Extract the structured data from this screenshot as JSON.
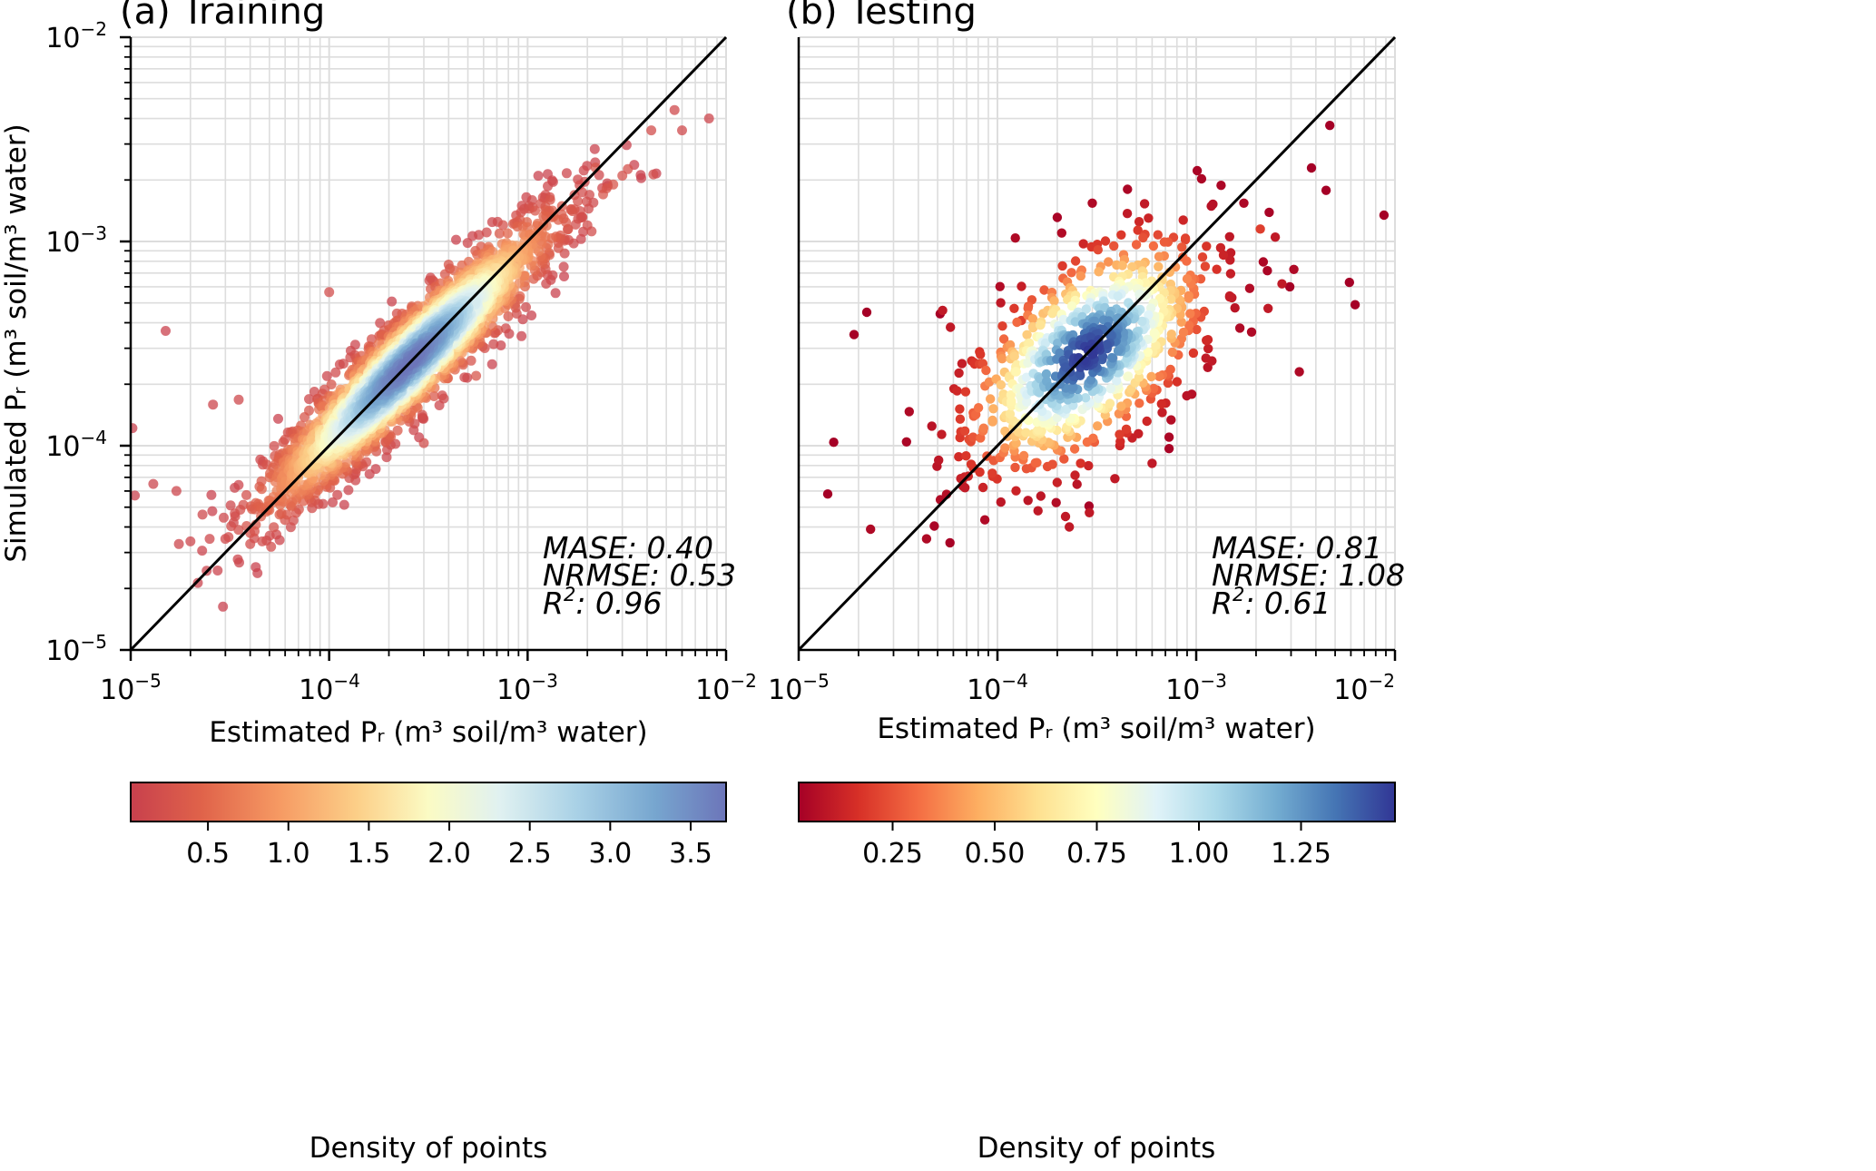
{
  "figure": {
    "colors": {
      "frame": "#000000",
      "grid": "#dddddd",
      "identity_line": "#000000"
    }
  },
  "chart_data": [
    {
      "type": "scatter",
      "panel": "(a)",
      "title": "(a) Training",
      "xlabel": "Estimated Pᵣ (m³ soil/m³ water)",
      "ylabel": "Simulated Pᵣ (m³ soil/m³ water)",
      "xscale": "log",
      "yscale": "log",
      "xlim": [
        1e-05,
        0.01
      ],
      "ylim": [
        1e-05,
        0.01
      ],
      "grid": true,
      "identity_line": true,
      "xticks": [
        {
          "value": 1e-05,
          "base": "10",
          "exp": "−5"
        },
        {
          "value": 0.0001,
          "base": "10",
          "exp": "−4"
        },
        {
          "value": 0.001,
          "base": "10",
          "exp": "−3"
        },
        {
          "value": 0.01,
          "base": "10",
          "exp": "−2"
        }
      ],
      "yticks": [
        {
          "value": 1e-05,
          "base": "10",
          "exp": "−5"
        },
        {
          "value": 0.0001,
          "base": "10",
          "exp": "−4"
        },
        {
          "value": 0.001,
          "base": "10",
          "exp": "−3"
        },
        {
          "value": 0.01,
          "base": "10",
          "exp": "−2"
        }
      ],
      "metrics": {
        "mase_label": "MASE:",
        "mase": "0.40",
        "nrmse_label": "NRMSE:",
        "nrmse": "0.53",
        "r2_label": "R",
        "r2_sup": "2",
        "r2": ": 0.96"
      },
      "colormap": "RdYlBu",
      "point_alpha": 0.75,
      "colorbar": {
        "label": "Density of points",
        "range": [
          0.02,
          3.72
        ],
        "ticks": [
          "0.5",
          "1.0",
          "1.5",
          "2.0",
          "2.5",
          "3.0",
          "3.5"
        ],
        "tick_values": [
          0.5,
          1.0,
          1.5,
          2.0,
          2.5,
          3.0,
          3.5
        ]
      },
      "point_cloud": {
        "n_points": 2600,
        "log10_center": [
          -3.6,
          -3.6
        ],
        "spread_along_diagonal": 0.36,
        "spread_across_diagonal": 0.095,
        "slope": 0.94,
        "seed": 7
      },
      "points": [
        {
          "x": 1.02e-05,
          "y": 0.000122,
          "d": 0.05
        },
        {
          "x": 1.05e-05,
          "y": 5.7e-05,
          "d": 0.05
        },
        {
          "x": 1.3e-05,
          "y": 6.5e-05,
          "d": 0.08
        },
        {
          "x": 1.5e-05,
          "y": 0.000365,
          "d": 0.05
        },
        {
          "x": 1.7e-05,
          "y": 6e-05,
          "d": 0.1
        },
        {
          "x": 1.75e-05,
          "y": 3.3e-05,
          "d": 0.1
        },
        {
          "x": 2e-05,
          "y": 3.4e-05,
          "d": 0.1
        },
        {
          "x": 2.3e-05,
          "y": 4.6e-05,
          "d": 0.12
        },
        {
          "x": 2.5e-05,
          "y": 3.5e-05,
          "d": 0.12
        },
        {
          "x": 2.6e-05,
          "y": 0.000159,
          "d": 0.1
        },
        {
          "x": 3e-05,
          "y": 3.5e-05,
          "d": 0.15
        },
        {
          "x": 3.3e-05,
          "y": 4.2e-05,
          "d": 0.15
        },
        {
          "x": 3.5e-05,
          "y": 0.000168,
          "d": 0.12
        },
        {
          "x": 4e-05,
          "y": 3.3e-05,
          "d": 0.2
        },
        {
          "x": 4.6e-05,
          "y": 3.4e-05,
          "d": 0.2
        },
        {
          "x": 5.1e-05,
          "y": 3.2e-05,
          "d": 0.2
        },
        {
          "x": 0.0001,
          "y": 0.000565,
          "d": 0.2
        },
        {
          "x": 0.0003,
          "y": 0.000103,
          "d": 0.2
        },
        {
          "x": 0.00018,
          "y": 0.000131,
          "d": 0.25
        },
        {
          "x": 0.00055,
          "y": 0.00022,
          "d": 0.3
        },
        {
          "x": 0.0004,
          "y": 0.00077,
          "d": 0.3
        },
        {
          "x": 0.0009,
          "y": 0.00078,
          "d": 0.45
        },
        {
          "x": 0.0013,
          "y": 0.0016,
          "d": 0.3
        },
        {
          "x": 0.0016,
          "y": 0.00115,
          "d": 0.3
        },
        {
          "x": 0.002,
          "y": 0.0012,
          "d": 0.2
        },
        {
          "x": 0.0021,
          "y": 0.00112,
          "d": 0.2
        },
        {
          "x": 0.0022,
          "y": 0.0023,
          "d": 0.3
        },
        {
          "x": 0.0024,
          "y": 0.0017,
          "d": 0.3
        },
        {
          "x": 0.0025,
          "y": 0.00182,
          "d": 0.3
        },
        {
          "x": 0.0027,
          "y": 0.0019,
          "d": 0.3
        },
        {
          "x": 0.003,
          "y": 0.0021,
          "d": 0.25
        },
        {
          "x": 0.0032,
          "y": 0.00226,
          "d": 0.25
        },
        {
          "x": 0.0043,
          "y": 0.00213,
          "d": 0.2
        },
        {
          "x": 0.0042,
          "y": 0.0035,
          "d": 0.2
        },
        {
          "x": 0.0055,
          "y": 0.0044,
          "d": 0.15
        },
        {
          "x": 0.006,
          "y": 0.0035,
          "d": 0.15
        },
        {
          "x": 0.0082,
          "y": 0.004,
          "d": 0.1
        }
      ]
    },
    {
      "type": "scatter",
      "panel": "(b)",
      "title": "(b) Testing",
      "xlabel": "Estimated Pᵣ (m³ soil/m³ water)",
      "ylabel": "",
      "xscale": "log",
      "yscale": "log",
      "xlim": [
        1e-05,
        0.01
      ],
      "ylim": [
        1e-05,
        0.01
      ],
      "grid": true,
      "identity_line": true,
      "xticks": [
        {
          "value": 1e-05,
          "base": "10",
          "exp": "−5"
        },
        {
          "value": 0.0001,
          "base": "10",
          "exp": "−4"
        },
        {
          "value": 0.001,
          "base": "10",
          "exp": "−3"
        },
        {
          "value": 0.01,
          "base": "10",
          "exp": "−2"
        }
      ],
      "yticks": [],
      "metrics": {
        "mase_label": "MASE:",
        "mase": "0.81",
        "nrmse_label": "NRMSE:",
        "nrmse": "1.08",
        "r2_label": "R",
        "r2_sup": "2",
        "r2": ": 0.61"
      },
      "colormap": "RdYlBu",
      "point_alpha": 1.0,
      "colorbar": {
        "label": "Density of points",
        "range": [
          0.02,
          1.48
        ],
        "ticks": [
          "0.25",
          "0.50",
          "0.75",
          "1.00",
          "1.25"
        ],
        "tick_values": [
          0.25,
          0.5,
          0.75,
          1.0,
          1.25
        ]
      },
      "point_cloud": {
        "n_points": 820,
        "log10_center": [
          -3.55,
          -3.55
        ],
        "spread_along_diagonal": 0.3,
        "spread_across_diagonal": 0.2,
        "slope": 0.72,
        "seed": 11
      },
      "points": [
        {
          "x": 1.4e-05,
          "y": 5.8e-05,
          "d": 0.02
        },
        {
          "x": 1.5e-05,
          "y": 0.000104,
          "d": 0.02
        },
        {
          "x": 1.9e-05,
          "y": 0.00035,
          "d": 0.02
        },
        {
          "x": 2.2e-05,
          "y": 0.00045,
          "d": 0.02
        },
        {
          "x": 2.3e-05,
          "y": 3.9e-05,
          "d": 0.05
        },
        {
          "x": 3.6e-05,
          "y": 0.000147,
          "d": 0.05
        },
        {
          "x": 4.4e-05,
          "y": 3.5e-05,
          "d": 0.05
        },
        {
          "x": 5.3e-05,
          "y": 0.00046,
          "d": 0.1
        },
        {
          "x": 5.8e-05,
          "y": 0.00038,
          "d": 0.1
        },
        {
          "x": 0.000123,
          "y": 0.00104,
          "d": 0.05
        },
        {
          "x": 0.000132,
          "y": 0.00041,
          "d": 0.2
        },
        {
          "x": 0.00016,
          "y": 4.8e-05,
          "d": 0.1
        },
        {
          "x": 0.00022,
          "y": 4.5e-05,
          "d": 0.1
        },
        {
          "x": 0.00023,
          "y": 4e-05,
          "d": 0.1
        },
        {
          "x": 0.00029,
          "y": 4.7e-05,
          "d": 0.1
        },
        {
          "x": 0.0003,
          "y": 0.00154,
          "d": 0.05
        },
        {
          "x": 0.00039,
          "y": 6.9e-05,
          "d": 0.1
        },
        {
          "x": 0.00045,
          "y": 0.00137,
          "d": 0.1
        },
        {
          "x": 0.00055,
          "y": 0.00153,
          "d": 0.1
        },
        {
          "x": 0.0006,
          "y": 8.2e-05,
          "d": 0.1
        },
        {
          "x": 0.0012,
          "y": 0.00026,
          "d": 0.1
        },
        {
          "x": 0.0019,
          "y": 0.00036,
          "d": 0.05
        },
        {
          "x": 0.0021,
          "y": 0.00115,
          "d": 0.2
        },
        {
          "x": 0.0023,
          "y": 0.00047,
          "d": 0.1
        },
        {
          "x": 0.0025,
          "y": 0.00105,
          "d": 0.1
        },
        {
          "x": 0.0027,
          "y": 0.00062,
          "d": 0.1
        },
        {
          "x": 0.0031,
          "y": 0.00073,
          "d": 0.05
        },
        {
          "x": 0.0033,
          "y": 0.00023,
          "d": 0.05
        },
        {
          "x": 0.0038,
          "y": 0.00229,
          "d": 0.02
        },
        {
          "x": 0.0045,
          "y": 0.00178,
          "d": 0.02
        },
        {
          "x": 0.0047,
          "y": 0.0037,
          "d": 0.02
        },
        {
          "x": 0.0059,
          "y": 0.00063,
          "d": 0.02
        },
        {
          "x": 0.0063,
          "y": 0.00049,
          "d": 0.02
        }
      ]
    }
  ]
}
